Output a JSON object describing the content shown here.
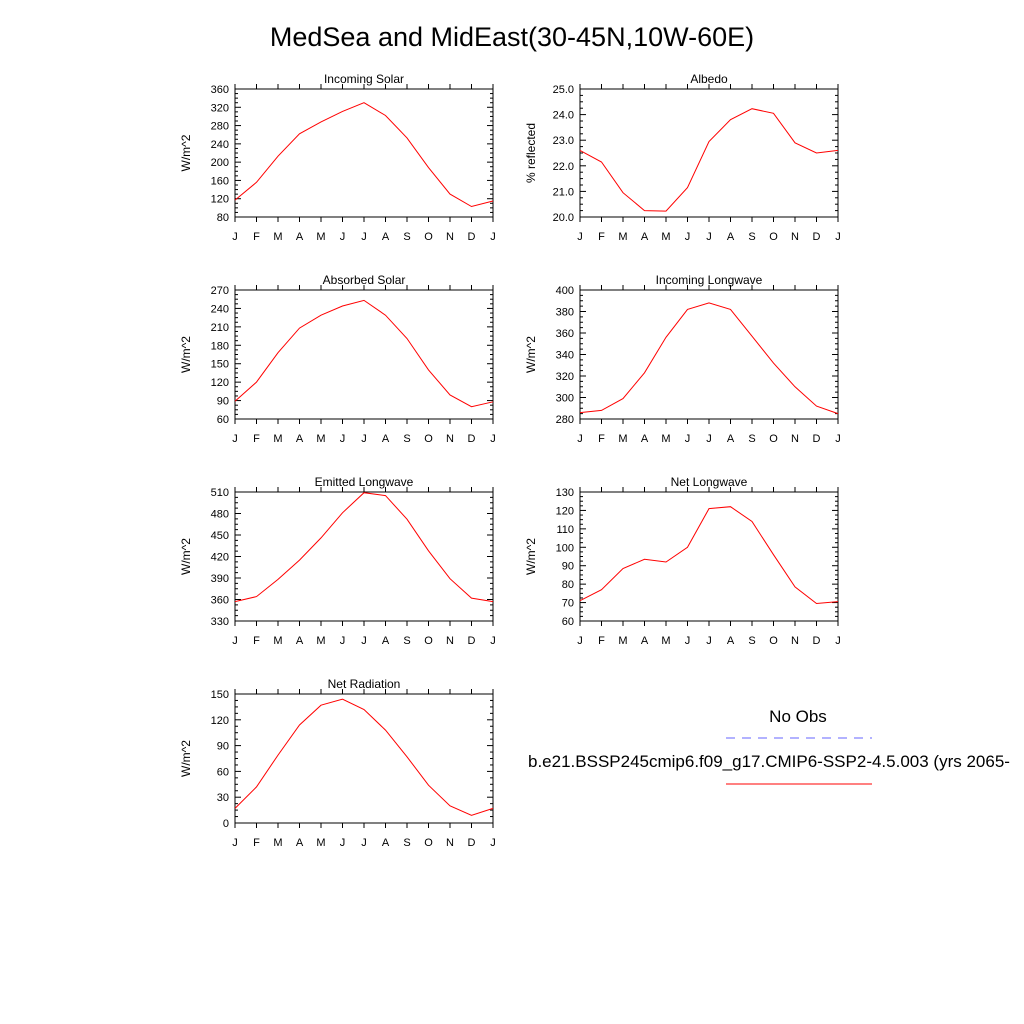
{
  "main_title": "MedSea and MidEast(30-45N,10W-60E)",
  "months": [
    "J",
    "F",
    "M",
    "A",
    "M",
    "J",
    "J",
    "A",
    "S",
    "O",
    "N",
    "D",
    "J"
  ],
  "colors": {
    "model_line": "#ff0000",
    "obs_line": "#6666ff",
    "axis": "#000000"
  },
  "legend": {
    "obs_label": "No Obs",
    "model_label": "b.e21.BSSP245cmip6.f09_g17.CMIP6-SSP2-4.5.003 (yrs 2065-"
  },
  "chart_data": [
    {
      "type": "line",
      "title": "Incoming Solar",
      "ylabel": "W/m^2",
      "ylim": [
        80,
        360
      ],
      "yticks": [
        80,
        120,
        160,
        200,
        240,
        280,
        320,
        360
      ],
      "ytick_labels": [
        "80",
        "120",
        "160",
        "200",
        "240",
        "280",
        "320",
        "360"
      ],
      "series": [
        {
          "values": [
            117,
            156,
            213,
            262,
            288,
            311,
            330,
            302,
            253,
            188,
            130,
            103,
            115
          ]
        }
      ]
    },
    {
      "type": "line",
      "title": "Albedo",
      "ylabel": "% reflected",
      "ylim": [
        20,
        25
      ],
      "yticks": [
        20,
        21,
        22,
        23,
        24,
        25
      ],
      "ytick_labels": [
        "20.0",
        "21.0",
        "22.0",
        "23.0",
        "24.0",
        "25.0"
      ],
      "series": [
        {
          "values": [
            22.6,
            22.15,
            20.95,
            20.25,
            20.23,
            21.15,
            22.95,
            23.8,
            24.23,
            24.05,
            22.9,
            22.5,
            22.6
          ]
        }
      ]
    },
    {
      "type": "line",
      "title": "Absorbed Solar",
      "ylabel": "W/m^2",
      "ylim": [
        60,
        270
      ],
      "yticks": [
        60,
        90,
        120,
        150,
        180,
        210,
        240,
        270
      ],
      "ytick_labels": [
        "60",
        "90",
        "120",
        "150",
        "180",
        "210",
        "240",
        "270"
      ],
      "series": [
        {
          "values": [
            89,
            120,
            168,
            208,
            229,
            244,
            253,
            229,
            191,
            140,
            99,
            80,
            88
          ]
        }
      ]
    },
    {
      "type": "line",
      "title": "Incoming Longwave",
      "ylabel": "W/m^2",
      "ylim": [
        280,
        400
      ],
      "yticks": [
        280,
        300,
        320,
        340,
        360,
        380,
        400
      ],
      "ytick_labels": [
        "280",
        "300",
        "320",
        "340",
        "360",
        "380",
        "400"
      ],
      "series": [
        {
          "values": [
            286,
            288,
            299,
            323,
            356,
            382,
            388,
            382,
            357,
            332,
            310,
            292,
            285
          ]
        }
      ]
    },
    {
      "type": "line",
      "title": "Emitted Longwave",
      "ylabel": "W/m^2",
      "ylim": [
        330,
        510
      ],
      "yticks": [
        330,
        360,
        390,
        420,
        450,
        480,
        510
      ],
      "ytick_labels": [
        "330",
        "360",
        "390",
        "420",
        "450",
        "480",
        "510"
      ],
      "series": [
        {
          "values": [
            357,
            364,
            388,
            415,
            446,
            481,
            509,
            505,
            472,
            428,
            389,
            362,
            357
          ]
        }
      ]
    },
    {
      "type": "line",
      "title": "Net Longwave",
      "ylabel": "W/m^2",
      "ylim": [
        60,
        130
      ],
      "yticks": [
        60,
        70,
        80,
        90,
        100,
        110,
        120,
        130
      ],
      "ytick_labels": [
        "60",
        "70",
        "80",
        "90",
        "100",
        "110",
        "120",
        "130"
      ],
      "series": [
        {
          "values": [
            71,
            77,
            88.5,
            93.5,
            92,
            100,
            121,
            122,
            114,
            96,
            78.5,
            69.5,
            70.5
          ]
        }
      ]
    },
    {
      "type": "line",
      "title": "Net Radiation",
      "ylabel": "W/m^2",
      "ylim": [
        0,
        150
      ],
      "yticks": [
        0,
        30,
        60,
        90,
        120,
        150
      ],
      "ytick_labels": [
        "0",
        "30",
        "60",
        "90",
        "120",
        "150"
      ],
      "series": [
        {
          "values": [
            17,
            42,
            79,
            114,
            137,
            144,
            132,
            108,
            77,
            44,
            20,
            9,
            17
          ]
        }
      ]
    }
  ]
}
